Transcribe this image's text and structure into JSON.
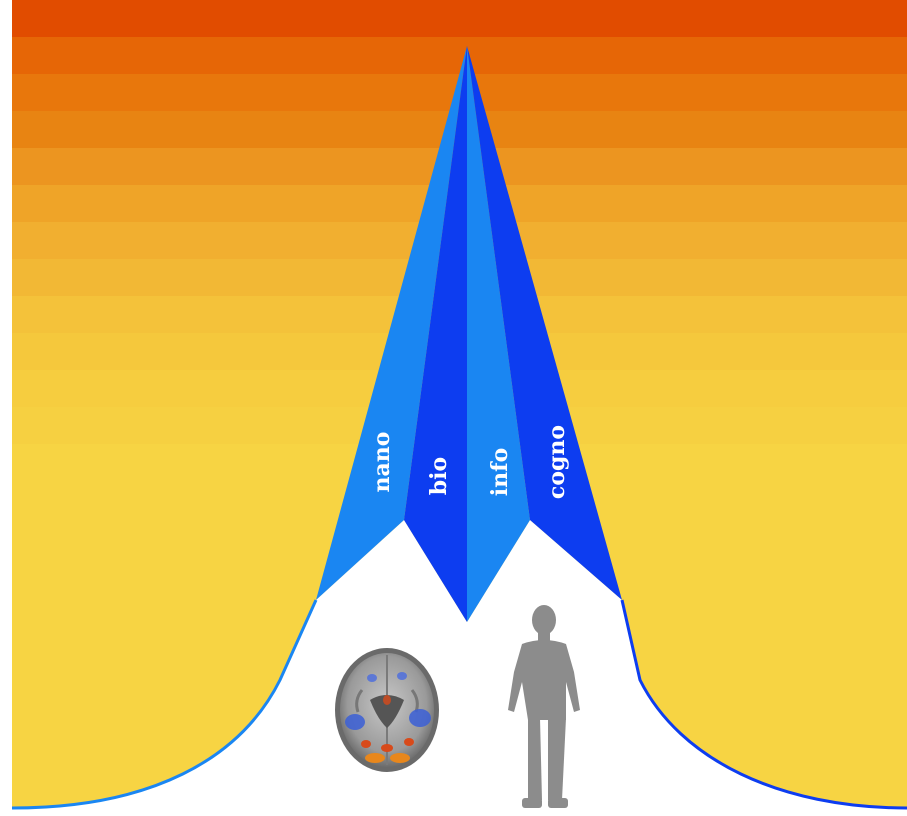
{
  "diagram": {
    "segments": [
      {
        "label": "nano",
        "color": "#1a86f2"
      },
      {
        "label": "bio",
        "color": "#0d3df0"
      },
      {
        "label": "info",
        "color": "#1a86f2"
      },
      {
        "label": "cogno",
        "color": "#0d3df0"
      }
    ],
    "background": {
      "bands": [
        "#e14c00",
        "#e66606",
        "#e8770c",
        "#e88412",
        "#ec9520",
        "#efa428",
        "#f1af30",
        "#f2b835",
        "#f4c23a",
        "#f5c83c",
        "#f6cd3f",
        "#f6d041",
        "#f7d443"
      ]
    },
    "icons": [
      "brain-scan-icon",
      "human-figure-icon"
    ]
  }
}
